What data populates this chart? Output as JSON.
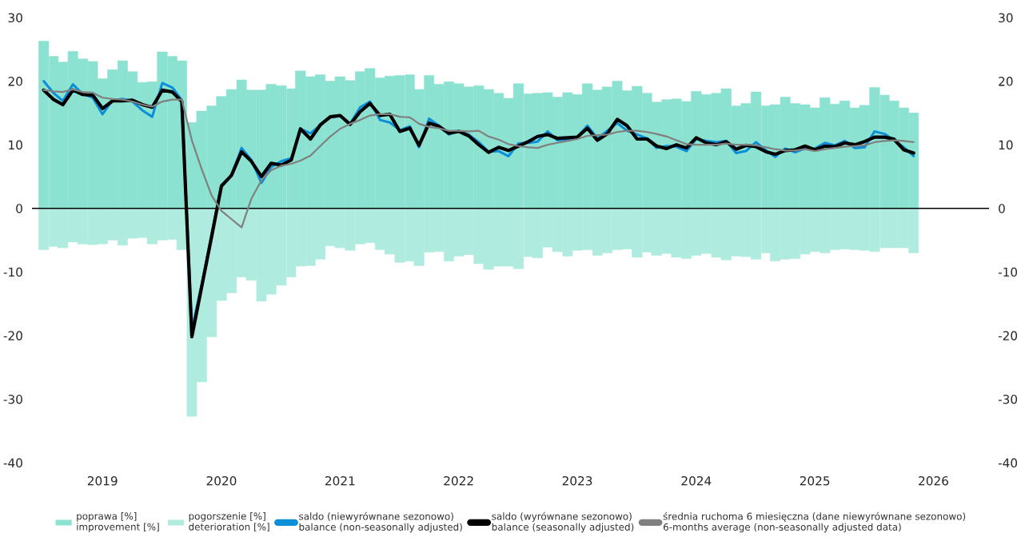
{
  "chart_data": {
    "type": "bar",
    "x": [
      "2019-01",
      "2019-02",
      "2019-03",
      "2019-04",
      "2019-05",
      "2019-06",
      "2019-07",
      "2019-08",
      "2019-09",
      "2019-10",
      "2019-11",
      "2019-12",
      "2020-01",
      "2020-02",
      "2020-03",
      "2020-04",
      "2020-05",
      "2020-06",
      "2020-07",
      "2020-08",
      "2020-09",
      "2020-10",
      "2020-11",
      "2020-12",
      "2021-01",
      "2021-02",
      "2021-03",
      "2021-04",
      "2021-05",
      "2021-06",
      "2021-07",
      "2021-08",
      "2021-09",
      "2021-10",
      "2021-11",
      "2021-12",
      "2022-01",
      "2022-02",
      "2022-03",
      "2022-04",
      "2022-05",
      "2022-06",
      "2022-07",
      "2022-08",
      "2022-09",
      "2022-10",
      "2022-11",
      "2022-12",
      "2023-01",
      "2023-02",
      "2023-03",
      "2023-04",
      "2023-05",
      "2023-06",
      "2023-07",
      "2023-08",
      "2023-09",
      "2023-10",
      "2023-11",
      "2023-12",
      "2024-01",
      "2024-02",
      "2024-03",
      "2024-04",
      "2024-05",
      "2024-06",
      "2024-07",
      "2024-08",
      "2024-09",
      "2024-10",
      "2024-11",
      "2024-12",
      "2025-01",
      "2025-02",
      "2025-03",
      "2025-04",
      "2025-05",
      "2025-06",
      "2025-07",
      "2025-08",
      "2025-09",
      "2025-10",
      "2025-11",
      "2025-12",
      "2026-01",
      "2026-02",
      "2026-03",
      "2026-04",
      "2026-05"
    ],
    "series": [
      {
        "name": "poprawa [%]\nimprovement [%]",
        "color": "#8ce2d0",
        "values": [
          26.3,
          23.9,
          23.0,
          24.7,
          23.5,
          23.1,
          20.4,
          21.8,
          23.2,
          21.5,
          19.8,
          19.9,
          24.6,
          23.9,
          23.2,
          13.5,
          15.3,
          16.1,
          17.6,
          18.7,
          20.2,
          18.6,
          18.6,
          19.5,
          19.3,
          18.8,
          21.6,
          20.7,
          21.0,
          20.0,
          20.7,
          20.1,
          21.5,
          22.0,
          20.5,
          20.8,
          20.9,
          21.0,
          18.7,
          20.9,
          19.5,
          19.9,
          19.6,
          19.1,
          19.3,
          18.7,
          18.1,
          17.3,
          19.6,
          18.0,
          18.1,
          18.2,
          17.5,
          18.2,
          17.9,
          19.6,
          18.6,
          19.1,
          20.0,
          18.5,
          19.2,
          18.1,
          16.7,
          17.1,
          17.2,
          16.8,
          18.4,
          17.9,
          18.1,
          18.8,
          16.1,
          16.5,
          18.3,
          16.1,
          16.3,
          17.5,
          16.5,
          16.3,
          15.8,
          17.4,
          16.4,
          16.9,
          15.8,
          16.2,
          19.0,
          17.8,
          16.9,
          15.8,
          15.0
        ]
      },
      {
        "name": "pogorszenie [%]\ndeterioration [%]",
        "color": "#b0ebdf",
        "values": [
          -6.5,
          -6.0,
          -6.2,
          -5.3,
          -5.6,
          -5.7,
          -5.6,
          -5.0,
          -5.8,
          -4.7,
          -4.6,
          -5.6,
          -5.0,
          -4.9,
          -6.5,
          -32.7,
          -27.3,
          -20.2,
          -14.5,
          -13.3,
          -10.8,
          -11.3,
          -14.6,
          -13.5,
          -12.1,
          -10.8,
          -9.1,
          -9.0,
          -8.0,
          -5.9,
          -6.2,
          -6.6,
          -5.6,
          -5.4,
          -6.5,
          -7.2,
          -8.5,
          -8.3,
          -9.0,
          -6.9,
          -6.8,
          -8.3,
          -7.5,
          -7.3,
          -8.7,
          -9.6,
          -9.1,
          -9.1,
          -9.5,
          -7.6,
          -7.8,
          -6.1,
          -6.8,
          -7.5,
          -6.6,
          -6.5,
          -7.4,
          -7.0,
          -6.5,
          -6.4,
          -7.7,
          -6.9,
          -7.4,
          -7.1,
          -7.7,
          -7.9,
          -7.4,
          -7.1,
          -7.7,
          -8.1,
          -7.5,
          -7.6,
          -8.0,
          -7.0,
          -8.3,
          -8.0,
          -7.9,
          -7.2,
          -6.8,
          -7.0,
          -6.5,
          -6.4,
          -6.5,
          -6.6,
          -6.8,
          -6.2,
          -6.2,
          -6.2,
          -7.0
        ]
      },
      {
        "name": "saldo (niewyrównane sezonowo)\nbalance (non-seasonally adjusted)",
        "type": "line",
        "color": "#0a8fd8",
        "values": [
          20.0,
          18.1,
          16.9,
          19.5,
          18.0,
          17.4,
          14.8,
          17.0,
          17.2,
          16.8,
          15.4,
          14.4,
          19.7,
          19.0,
          17.0,
          -19.0,
          -12.0,
          -4.0,
          3.7,
          5.2,
          9.5,
          7.6,
          4.0,
          6.5,
          7.4,
          7.9,
          12.5,
          11.8,
          13.1,
          14.3,
          14.5,
          13.3,
          15.9,
          16.8,
          13.9,
          13.5,
          12.3,
          12.9,
          9.6,
          14.1,
          13.0,
          11.6,
          12.2,
          11.6,
          10.4,
          8.9,
          9.0,
          8.2,
          10.2,
          10.3,
          10.5,
          12.1,
          10.7,
          10.8,
          11.2,
          13.0,
          11.0,
          12.2,
          13.4,
          12.2,
          11.6,
          11.0,
          9.5,
          9.8,
          9.7,
          9.0,
          10.9,
          10.6,
          10.4,
          10.6,
          8.7,
          9.0,
          10.4,
          9.1,
          8.1,
          9.4,
          8.8,
          9.4,
          9.4,
          10.3,
          9.9,
          10.6,
          9.5,
          9.6,
          12.1,
          11.7,
          10.7,
          9.6,
          8.2
        ]
      },
      {
        "name": "saldo (wyrównane sezonowo)\nbalance (seasonally adjusted)",
        "type": "line",
        "color": "#000000",
        "values": [
          18.6,
          17.1,
          16.3,
          18.6,
          17.9,
          17.8,
          15.7,
          16.9,
          16.9,
          17.0,
          16.3,
          15.9,
          18.6,
          18.3,
          16.8,
          -20.2,
          -12.4,
          -4.4,
          3.5,
          5.2,
          8.9,
          7.4,
          5.0,
          7.1,
          6.8,
          7.6,
          12.5,
          10.9,
          13.1,
          14.4,
          14.6,
          13.2,
          15.2,
          16.5,
          14.6,
          14.8,
          12.1,
          12.6,
          9.9,
          13.4,
          12.9,
          11.8,
          12.1,
          11.4,
          10.0,
          8.8,
          9.6,
          9.1,
          9.8,
          10.5,
          11.3,
          11.6,
          11.0,
          11.1,
          11.2,
          12.6,
          10.7,
          11.7,
          14.0,
          13.0,
          10.9,
          10.9,
          9.8,
          9.4,
          10.0,
          9.5,
          11.1,
          10.3,
          10.0,
          10.5,
          9.3,
          9.9,
          9.7,
          8.9,
          8.5,
          9.1,
          9.2,
          9.8,
          9.2,
          9.8,
          9.7,
          10.3,
          10.0,
          10.5,
          11.2,
          11.2,
          10.9,
          9.2,
          8.7
        ]
      },
      {
        "name": "średnia ruchoma 6 miesięczna (dane niewyrównane sezonowo)\n6-months average (non-seasonally adjusted data)",
        "type": "line",
        "color": "#808080",
        "values": [
          18.6,
          18.4,
          18.3,
          18.7,
          18.3,
          18.2,
          17.4,
          17.2,
          17.1,
          16.8,
          16.3,
          16.0,
          16.8,
          17.1,
          17.1,
          10.7,
          6.2,
          2.0,
          -0.4,
          -1.7,
          -3.0,
          1.5,
          4.4,
          6.0,
          6.7,
          7.0,
          7.5,
          8.3,
          9.8,
          11.3,
          12.5,
          13.3,
          13.9,
          14.6,
          14.8,
          14.8,
          14.4,
          14.3,
          13.3,
          12.8,
          12.6,
          12.2,
          12.2,
          12.1,
          12.2,
          11.3,
          10.8,
          10.1,
          9.8,
          9.6,
          9.5,
          10.0,
          10.3,
          10.6,
          10.9,
          11.4,
          11.5,
          11.6,
          12.0,
          12.2,
          12.2,
          12.0,
          11.7,
          11.3,
          10.7,
          10.1,
          10.0,
          10.0,
          10.0,
          10.2,
          10.0,
          10.0,
          9.9,
          9.6,
          9.3,
          9.1,
          9.1,
          9.3,
          9.0,
          9.3,
          9.5,
          9.7,
          9.8,
          9.9,
          10.4,
          10.6,
          10.7,
          10.6,
          10.4
        ]
      }
    ],
    "xlim": [
      "2018-11-26",
      "2026-12-19"
    ],
    "xticks": [
      {
        "value": "2019-07-01",
        "label": "2019"
      },
      {
        "value": "2020-07-01",
        "label": "2020"
      },
      {
        "value": "2021-07-01",
        "label": "2021"
      },
      {
        "value": "2022-07-01",
        "label": "2022"
      },
      {
        "value": "2023-07-01",
        "label": "2023"
      },
      {
        "value": "2024-07-01",
        "label": "2024"
      },
      {
        "value": "2025-07-01",
        "label": "2025"
      },
      {
        "value": "2026-07-01",
        "label": "2026"
      }
    ],
    "ylim": [
      -40,
      30
    ],
    "yticks": [
      -40,
      -30,
      -20,
      -10,
      0,
      10,
      20,
      30
    ],
    "y2lim": [
      -40,
      30
    ],
    "y2ticks": [
      -40,
      -30,
      -20,
      -10,
      0,
      10,
      20,
      30
    ],
    "ref_lines": [
      {
        "axis": "y",
        "value": 0,
        "color": "#000000"
      }
    ],
    "stacked": true,
    "grid": false,
    "legend": "bottom"
  }
}
